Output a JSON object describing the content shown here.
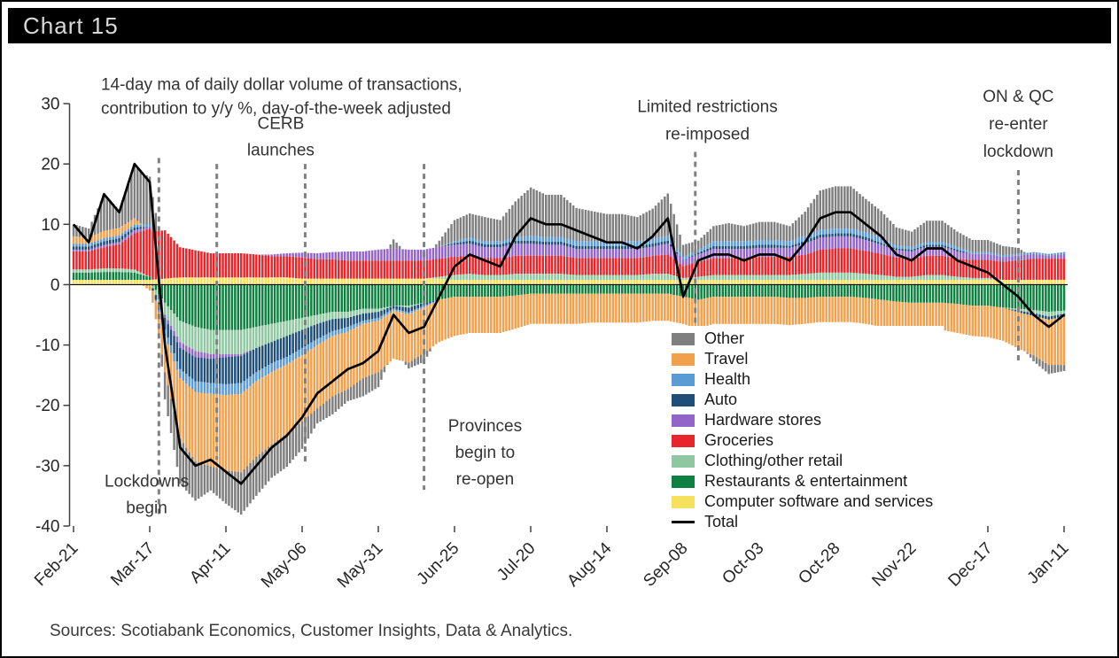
{
  "header": {
    "title": "Chart 15"
  },
  "footer": {
    "sources": "Sources: Scotiabank Economics, Customer Insights, Data & Analytics."
  },
  "chart_data": {
    "type": "stacked-bar-line",
    "title": "Chart 15",
    "subtitle": "14-day ma of daily dollar volume of transactions, contribution to y/y %, day-of-the-week adjusted",
    "ylim": [
      -40,
      30
    ],
    "yticks": [
      30,
      20,
      10,
      0,
      -10,
      -20,
      -30,
      -40
    ],
    "x_range_days": [
      0,
      325
    ],
    "sample_step_days": 5,
    "tick_days": [
      0,
      25,
      50,
      75,
      100,
      125,
      150,
      175,
      200,
      225,
      250,
      275,
      300,
      325
    ],
    "tick_labels": [
      "Feb-21",
      "Mar-17",
      "Apr-11",
      "May-06",
      "May-31",
      "Jun-25",
      "Jul-20",
      "Aug-14",
      "Sep-08",
      "Oct-03",
      "Oct-28",
      "Nov-22",
      "Dec-17",
      "Jan-11"
    ],
    "series": [
      {
        "name": "Computer software and services",
        "color": "#F5E15E",
        "values": [
          0.8,
          0.8,
          0.8,
          0.8,
          0.8,
          0.8,
          1.0,
          1.2,
          1.2,
          1.2,
          1.2,
          1.2,
          1.2,
          1.2,
          1.2,
          1.0,
          1.0,
          1.0,
          1.0,
          1.0,
          1.0,
          1.0,
          1.0,
          1.0,
          1.0,
          0.8,
          0.8,
          0.8,
          0.8,
          0.8,
          0.8,
          0.8,
          0.8,
          0.8,
          0.8,
          0.8,
          0.8,
          0.8,
          0.8,
          0.8,
          0.8,
          0.8,
          0.8,
          0.8,
          0.8,
          0.8,
          0.8,
          0.8,
          0.8,
          0.8,
          0.8,
          0.8,
          0.8,
          0.8,
          0.8,
          0.8,
          0.8,
          0.8,
          0.8,
          0.8,
          0.8,
          0.8,
          0.8,
          0.8,
          0.8,
          0.8
        ]
      },
      {
        "name": "Restaurants & entertainment",
        "color": "#0E8040",
        "values": [
          1.2,
          1.2,
          1.3,
          1.3,
          1.2,
          0.5,
          -3.0,
          -6.0,
          -7.0,
          -7.5,
          -7.5,
          -7.5,
          -7.0,
          -6.5,
          -6.0,
          -5.5,
          -5.0,
          -4.5,
          -4.5,
          -4.0,
          -4.0,
          -3.5,
          -3.5,
          -3.0,
          -2.5,
          -2.0,
          -2.0,
          -2.0,
          -2.0,
          -1.8,
          -1.5,
          -1.5,
          -1.5,
          -1.5,
          -1.5,
          -1.5,
          -1.5,
          -1.5,
          -1.5,
          -1.5,
          -2.0,
          -2.5,
          -2.0,
          -2.0,
          -2.0,
          -2.0,
          -2.0,
          -2.2,
          -2.2,
          -2.0,
          -2.0,
          -2.0,
          -2.2,
          -2.5,
          -2.8,
          -3.0,
          -3.0,
          -3.0,
          -3.2,
          -3.5,
          -3.5,
          -3.8,
          -4.0,
          -4.2,
          -4.5,
          -4.3
        ]
      },
      {
        "name": "Clothing/other retail",
        "color": "#8FC7A0",
        "values": [
          0.5,
          0.5,
          0.6,
          0.6,
          0.5,
          0.0,
          -2.0,
          -3.5,
          -4.0,
          -4.0,
          -4.0,
          -4.0,
          -3.5,
          -3.0,
          -2.5,
          -2.0,
          -1.5,
          -1.2,
          -1.0,
          -0.8,
          -0.5,
          0.0,
          -0.3,
          0.0,
          0.3,
          0.8,
          1.0,
          0.8,
          0.8,
          1.0,
          1.0,
          1.0,
          1.0,
          0.8,
          0.8,
          0.8,
          0.8,
          0.8,
          1.0,
          1.0,
          0.3,
          0.5,
          0.8,
          0.8,
          0.8,
          0.8,
          0.8,
          0.8,
          1.0,
          1.2,
          1.2,
          1.2,
          1.0,
          0.8,
          0.5,
          0.5,
          0.8,
          0.8,
          0.5,
          0.3,
          0.3,
          0.0,
          -0.3,
          -0.5,
          -0.8,
          -0.5
        ]
      },
      {
        "name": "Groceries",
        "color": "#E8252B",
        "values": [
          3.0,
          3.0,
          3.5,
          4.0,
          6.0,
          8.0,
          8.0,
          5.0,
          4.5,
          4.0,
          4.0,
          4.0,
          3.8,
          3.5,
          3.5,
          3.5,
          3.2,
          3.2,
          3.0,
          3.0,
          3.0,
          3.0,
          3.0,
          3.0,
          3.0,
          3.0,
          3.0,
          2.8,
          2.8,
          3.0,
          3.0,
          3.0,
          3.0,
          2.8,
          2.8,
          2.8,
          2.8,
          2.8,
          3.0,
          3.2,
          2.0,
          2.5,
          2.8,
          2.8,
          2.8,
          3.0,
          3.0,
          3.0,
          3.2,
          3.8,
          4.0,
          4.0,
          3.8,
          3.5,
          3.2,
          3.0,
          3.2,
          3.2,
          3.0,
          3.0,
          3.0,
          3.0,
          3.2,
          3.5,
          3.5,
          3.5
        ]
      },
      {
        "name": "Hardware stores",
        "color": "#9465C8",
        "values": [
          0.3,
          0.3,
          0.4,
          0.4,
          0.5,
          0.3,
          -0.5,
          -1.0,
          -1.0,
          -0.8,
          -0.5,
          -0.3,
          0.0,
          0.3,
          0.5,
          0.8,
          1.0,
          1.2,
          1.5,
          1.5,
          1.8,
          2.0,
          1.8,
          1.8,
          2.0,
          2.0,
          2.0,
          1.8,
          1.8,
          2.0,
          2.0,
          1.8,
          1.8,
          1.5,
          1.5,
          1.5,
          1.5,
          1.5,
          1.5,
          1.8,
          1.0,
          1.2,
          1.5,
          1.5,
          1.5,
          1.5,
          1.5,
          1.5,
          1.8,
          2.0,
          2.0,
          2.0,
          1.8,
          1.5,
          1.2,
          1.2,
          1.5,
          1.5,
          1.2,
          1.0,
          1.0,
          0.8,
          0.8,
          0.8,
          0.5,
          0.8
        ]
      },
      {
        "name": "Auto",
        "color": "#1F4E79",
        "values": [
          0.5,
          0.5,
          0.6,
          0.6,
          0.5,
          0.0,
          -2.0,
          -3.5,
          -4.0,
          -4.0,
          -4.5,
          -4.5,
          -4.0,
          -3.5,
          -3.5,
          -3.0,
          -2.5,
          -2.0,
          -1.5,
          -1.2,
          -1.0,
          -0.5,
          -0.8,
          -0.5,
          0.0,
          0.3,
          0.5,
          0.5,
          0.5,
          0.5,
          0.5,
          0.5,
          0.5,
          0.5,
          0.5,
          0.5,
          0.5,
          0.5,
          0.5,
          0.5,
          0.0,
          0.3,
          0.5,
          0.5,
          0.5,
          0.5,
          0.5,
          0.3,
          0.5,
          0.5,
          0.5,
          0.5,
          0.5,
          0.3,
          0.3,
          0.3,
          0.3,
          0.3,
          0.3,
          0.0,
          0.0,
          0.0,
          -0.3,
          -0.5,
          -0.5,
          -0.5
        ]
      },
      {
        "name": "Health",
        "color": "#5B9BD5",
        "values": [
          0.5,
          0.5,
          0.5,
          0.5,
          0.5,
          0.3,
          -1.0,
          -1.5,
          -1.8,
          -1.8,
          -1.8,
          -1.8,
          -1.5,
          -1.5,
          -1.2,
          -1.2,
          -1.0,
          -0.8,
          -0.8,
          -0.5,
          -0.5,
          -0.3,
          -0.3,
          -0.3,
          0.0,
          0.3,
          0.5,
          0.5,
          0.5,
          0.5,
          0.8,
          0.8,
          0.8,
          0.8,
          0.8,
          0.8,
          0.8,
          0.8,
          0.8,
          0.8,
          0.5,
          0.5,
          0.8,
          0.8,
          0.8,
          0.8,
          0.8,
          0.8,
          0.8,
          0.8,
          0.8,
          0.8,
          0.8,
          0.8,
          0.5,
          0.5,
          0.5,
          0.5,
          0.5,
          0.3,
          0.3,
          0.3,
          0.3,
          0.3,
          0.3,
          0.3
        ]
      },
      {
        "name": "Travel",
        "color": "#F2A04B",
        "values": [
          1.2,
          1.0,
          1.2,
          1.2,
          1.0,
          -1.0,
          -6.0,
          -10.0,
          -11.5,
          -12.0,
          -12.5,
          -13.0,
          -12.5,
          -12.0,
          -11.5,
          -11.0,
          -10.5,
          -10.0,
          -9.5,
          -9.0,
          -8.5,
          -8.0,
          -8.0,
          -7.5,
          -7.0,
          -6.5,
          -6.0,
          -6.0,
          -6.0,
          -5.5,
          -5.0,
          -5.0,
          -5.0,
          -5.0,
          -4.8,
          -4.8,
          -4.8,
          -4.8,
          -4.5,
          -4.5,
          -4.5,
          -4.8,
          -4.5,
          -4.5,
          -4.5,
          -4.5,
          -4.5,
          -4.5,
          -4.3,
          -4.2,
          -4.2,
          -4.2,
          -4.3,
          -4.5,
          -4.5,
          -4.5,
          -4.5,
          -4.5,
          -4.8,
          -5.0,
          -5.2,
          -5.5,
          -6.0,
          -6.5,
          -7.5,
          -8.0
        ]
      },
      {
        "name": "Other",
        "color": "#7F7F7F",
        "values": [
          2.0,
          1.5,
          6.0,
          3.0,
          9.0,
          8.0,
          -4.5,
          -7.5,
          -6.5,
          -4.0,
          -5.5,
          -7.0,
          -6.5,
          -5.5,
          -5.5,
          -4.5,
          -2.5,
          -3.0,
          -2.0,
          -3.0,
          -2.5,
          1.5,
          -1.0,
          -1.5,
          1.0,
          3.5,
          4.0,
          4.0,
          3.5,
          6.0,
          8.0,
          7.0,
          7.0,
          5.5,
          5.0,
          4.5,
          4.5,
          4.0,
          5.0,
          7.0,
          2.0,
          1.5,
          2.5,
          3.0,
          2.5,
          3.0,
          3.0,
          2.5,
          4.0,
          6.5,
          7.0,
          7.0,
          5.5,
          4.5,
          3.0,
          2.5,
          3.5,
          3.5,
          2.5,
          2.0,
          2.0,
          1.5,
          1.0,
          -1.0,
          -1.5,
          -1.0
        ]
      }
    ],
    "total": {
      "name": "Total",
      "color": "#000000",
      "values": [
        10,
        7,
        15,
        12,
        20,
        17,
        -10,
        -27,
        -30,
        -29,
        -31,
        -33,
        -30,
        -27,
        -25,
        -22,
        -18,
        -16,
        -14,
        -13,
        -11,
        -5,
        -8,
        -7,
        -2,
        3,
        5,
        4,
        3,
        8,
        11,
        10,
        10,
        9,
        8,
        7,
        7,
        6,
        8,
        11,
        -2,
        4,
        5,
        5,
        4,
        5,
        5,
        4,
        7,
        11,
        12,
        12,
        10,
        8,
        5,
        4,
        6,
        6,
        4,
        3,
        2,
        0,
        -2,
        -5,
        -7,
        -5
      ]
    },
    "legend_order": [
      "Other",
      "Travel",
      "Health",
      "Auto",
      "Hardware stores",
      "Groceries",
      "Clothing/other retail",
      "Restaurants & entertainment",
      "Computer software and services",
      "Total"
    ],
    "dashed_lines": [
      {
        "id": "lockdowns",
        "day": 28,
        "top": 21,
        "bottom": -38
      },
      {
        "id": "cerb",
        "day": 47,
        "top": 20,
        "bottom": -29
      },
      {
        "id": "cerb-2",
        "day": 76,
        "top": 20,
        "bottom": -30
      },
      {
        "id": "provinces",
        "day": 115,
        "top": 20,
        "bottom": -34
      },
      {
        "id": "restrictions",
        "day": 204,
        "top": 22,
        "bottom": -26
      },
      {
        "id": "on-qc",
        "day": 310,
        "top": 19,
        "bottom": -13
      }
    ],
    "annotations": [
      {
        "id": "subtitle",
        "anchor": "start",
        "day": 9,
        "value": 32.3,
        "line_height": 27,
        "lines": [
          "14-day ma of daily dollar volume of transactions,",
          "contribution to y/y %, day-of-the-week adjusted"
        ]
      },
      {
        "id": "lockdowns-begin",
        "anchor": "middle",
        "day": 24,
        "value": -33.5,
        "line_height": 30,
        "lines": [
          "Lockdowns",
          "begin"
        ]
      },
      {
        "id": "cerb-launches",
        "anchor": "middle",
        "day": 68,
        "value": 25.8,
        "line_height": 30,
        "lines": [
          "CERB",
          "launches"
        ]
      },
      {
        "id": "provinces-reopen",
        "anchor": "middle",
        "day": 135,
        "value": -24.3,
        "line_height": 30,
        "lines": [
          "Provinces",
          "begin to",
          "re-open"
        ]
      },
      {
        "id": "limited-restrictions",
        "anchor": "middle",
        "day": 208,
        "value": 28.6,
        "line_height": 31,
        "lines": [
          "Limited restrictions",
          "re-imposed"
        ]
      },
      {
        "id": "on-qc-lockdown",
        "anchor": "middle",
        "day": 310,
        "value": 30.3,
        "line_height": 31,
        "lines": [
          "ON & QC",
          "re-enter",
          "lockdown"
        ]
      }
    ],
    "colors": {
      "dashed_line": "#808080",
      "axis": "#404040",
      "annotation_text": "#333333",
      "tick_text": "#262626"
    }
  }
}
